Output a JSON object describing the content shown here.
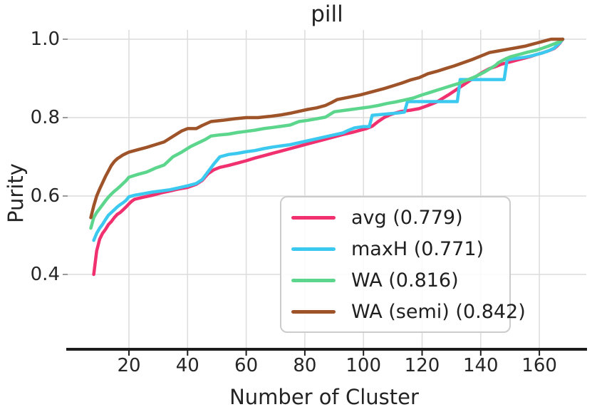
{
  "figure": {
    "title": "pill",
    "xlabel": "Number of Cluster",
    "ylabel": "Purity"
  },
  "chart_data": {
    "type": "line",
    "title": "pill",
    "xlabel": "Number of Cluster",
    "ylabel": "Purity",
    "x_ticks": [
      20,
      40,
      60,
      80,
      100,
      120,
      140,
      160
    ],
    "y_ticks": [
      0.4,
      0.6,
      0.8,
      1.0
    ],
    "xlim": [
      0,
      176
    ],
    "ylim": [
      0.21,
      1.02
    ],
    "grid": true,
    "grid_color": "#dcdcdc",
    "spine_color": "#1c1c1c",
    "legend_position": "lower right",
    "series": [
      {
        "name": "avg",
        "score": 0.779,
        "label": "avg (0.779)",
        "color": "#f0306f",
        "points": [
          [
            8,
            0.4
          ],
          [
            9,
            0.46
          ],
          [
            10,
            0.49
          ],
          [
            11,
            0.505
          ],
          [
            12,
            0.515
          ],
          [
            13,
            0.527
          ],
          [
            14,
            0.535
          ],
          [
            15,
            0.545
          ],
          [
            16,
            0.553
          ],
          [
            17,
            0.558
          ],
          [
            18,
            0.565
          ],
          [
            19,
            0.572
          ],
          [
            20,
            0.58
          ],
          [
            21,
            0.587
          ],
          [
            22,
            0.592
          ],
          [
            25,
            0.597
          ],
          [
            28,
            0.602
          ],
          [
            31,
            0.608
          ],
          [
            34,
            0.613
          ],
          [
            37,
            0.618
          ],
          [
            40,
            0.622
          ],
          [
            43,
            0.63
          ],
          [
            45,
            0.64
          ],
          [
            47,
            0.657
          ],
          [
            49,
            0.667
          ],
          [
            51,
            0.673
          ],
          [
            54,
            0.678
          ],
          [
            57,
            0.684
          ],
          [
            60,
            0.69
          ],
          [
            63,
            0.697
          ],
          [
            66,
            0.703
          ],
          [
            69,
            0.709
          ],
          [
            72,
            0.715
          ],
          [
            75,
            0.721
          ],
          [
            78,
            0.727
          ],
          [
            81,
            0.733
          ],
          [
            84,
            0.739
          ],
          [
            87,
            0.745
          ],
          [
            90,
            0.751
          ],
          [
            93,
            0.757
          ],
          [
            96,
            0.762
          ],
          [
            99,
            0.768
          ],
          [
            101,
            0.772
          ],
          [
            103,
            0.778
          ],
          [
            105,
            0.79
          ],
          [
            107,
            0.8
          ],
          [
            109,
            0.807
          ],
          [
            111,
            0.812
          ],
          [
            113,
            0.816
          ],
          [
            116,
            0.819
          ],
          [
            119,
            0.823
          ],
          [
            122,
            0.831
          ],
          [
            125,
            0.84
          ],
          [
            127,
            0.849
          ],
          [
            129,
            0.858
          ],
          [
            131,
            0.868
          ],
          [
            133,
            0.878
          ],
          [
            135,
            0.888
          ],
          [
            137,
            0.898
          ],
          [
            139,
            0.908
          ],
          [
            141,
            0.917
          ],
          [
            143,
            0.925
          ],
          [
            145,
            0.93
          ],
          [
            147,
            0.936
          ],
          [
            149,
            0.94
          ],
          [
            151,
            0.944
          ],
          [
            153,
            0.948
          ],
          [
            155,
            0.952
          ],
          [
            157,
            0.956
          ],
          [
            159,
            0.961
          ],
          [
            161,
            0.965
          ],
          [
            163,
            0.97
          ],
          [
            165,
            0.976
          ],
          [
            166,
            0.982
          ],
          [
            167,
            0.99
          ],
          [
            168,
            1.0
          ]
        ]
      },
      {
        "name": "maxH",
        "score": 0.771,
        "label": "maxH (0.771)",
        "color": "#3cc9f0",
        "points": [
          [
            8,
            0.487
          ],
          [
            9,
            0.505
          ],
          [
            10,
            0.518
          ],
          [
            11,
            0.528
          ],
          [
            12,
            0.54
          ],
          [
            13,
            0.551
          ],
          [
            14,
            0.558
          ],
          [
            15,
            0.565
          ],
          [
            16,
            0.572
          ],
          [
            17,
            0.578
          ],
          [
            18,
            0.583
          ],
          [
            19,
            0.589
          ],
          [
            20,
            0.598
          ],
          [
            22,
            0.602
          ],
          [
            25,
            0.606
          ],
          [
            28,
            0.61
          ],
          [
            31,
            0.613
          ],
          [
            34,
            0.616
          ],
          [
            37,
            0.621
          ],
          [
            40,
            0.626
          ],
          [
            43,
            0.632
          ],
          [
            45,
            0.642
          ],
          [
            47,
            0.662
          ],
          [
            49,
            0.682
          ],
          [
            51,
            0.7
          ],
          [
            54,
            0.706
          ],
          [
            57,
            0.709
          ],
          [
            60,
            0.713
          ],
          [
            63,
            0.716
          ],
          [
            66,
            0.721
          ],
          [
            69,
            0.725
          ],
          [
            72,
            0.728
          ],
          [
            75,
            0.731
          ],
          [
            78,
            0.736
          ],
          [
            81,
            0.741
          ],
          [
            84,
            0.746
          ],
          [
            87,
            0.751
          ],
          [
            90,
            0.756
          ],
          [
            93,
            0.761
          ],
          [
            95,
            0.768
          ],
          [
            97,
            0.774
          ],
          [
            100,
            0.777
          ],
          [
            102,
            0.777
          ],
          [
            103,
            0.806
          ],
          [
            106,
            0.808
          ],
          [
            109,
            0.81
          ],
          [
            112,
            0.812
          ],
          [
            114,
            0.814
          ],
          [
            115,
            0.841
          ],
          [
            120,
            0.841
          ],
          [
            125,
            0.841
          ],
          [
            130,
            0.841
          ],
          [
            132,
            0.841
          ],
          [
            133,
            0.897
          ],
          [
            137,
            0.897
          ],
          [
            141,
            0.897
          ],
          [
            145,
            0.897
          ],
          [
            148,
            0.897
          ],
          [
            149,
            0.947
          ],
          [
            151,
            0.95
          ],
          [
            153,
            0.952
          ],
          [
            155,
            0.954
          ],
          [
            157,
            0.957
          ],
          [
            159,
            0.961
          ],
          [
            161,
            0.965
          ],
          [
            163,
            0.97
          ],
          [
            165,
            0.977
          ],
          [
            166,
            0.984
          ],
          [
            167,
            0.991
          ],
          [
            168,
            1.0
          ]
        ]
      },
      {
        "name": "WA",
        "score": 0.816,
        "label": "WA (0.816)",
        "color": "#5dd68d",
        "points": [
          [
            7,
            0.518
          ],
          [
            8,
            0.545
          ],
          [
            9,
            0.558
          ],
          [
            10,
            0.568
          ],
          [
            11,
            0.578
          ],
          [
            12,
            0.588
          ],
          [
            13,
            0.597
          ],
          [
            14,
            0.605
          ],
          [
            15,
            0.612
          ],
          [
            16,
            0.618
          ],
          [
            17,
            0.625
          ],
          [
            18,
            0.632
          ],
          [
            19,
            0.639
          ],
          [
            20,
            0.648
          ],
          [
            23,
            0.655
          ],
          [
            26,
            0.661
          ],
          [
            29,
            0.671
          ],
          [
            32,
            0.679
          ],
          [
            35,
            0.7
          ],
          [
            38,
            0.712
          ],
          [
            41,
            0.726
          ],
          [
            44,
            0.737
          ],
          [
            46,
            0.744
          ],
          [
            48,
            0.753
          ],
          [
            51,
            0.756
          ],
          [
            54,
            0.758
          ],
          [
            57,
            0.762
          ],
          [
            60,
            0.765
          ],
          [
            63,
            0.768
          ],
          [
            66,
            0.772
          ],
          [
            69,
            0.775
          ],
          [
            72,
            0.778
          ],
          [
            75,
            0.781
          ],
          [
            78,
            0.79
          ],
          [
            81,
            0.793
          ],
          [
            84,
            0.797
          ],
          [
            87,
            0.801
          ],
          [
            90,
            0.815
          ],
          [
            93,
            0.818
          ],
          [
            96,
            0.821
          ],
          [
            99,
            0.824
          ],
          [
            102,
            0.827
          ],
          [
            105,
            0.831
          ],
          [
            108,
            0.836
          ],
          [
            111,
            0.84
          ],
          [
            114,
            0.845
          ],
          [
            117,
            0.85
          ],
          [
            120,
            0.858
          ],
          [
            123,
            0.865
          ],
          [
            126,
            0.872
          ],
          [
            129,
            0.879
          ],
          [
            132,
            0.886
          ],
          [
            135,
            0.895
          ],
          [
            138,
            0.904
          ],
          [
            141,
            0.915
          ],
          [
            143,
            0.924
          ],
          [
            145,
            0.933
          ],
          [
            146,
            0.94
          ],
          [
            148,
            0.948
          ],
          [
            150,
            0.955
          ],
          [
            153,
            0.961
          ],
          [
            156,
            0.967
          ],
          [
            159,
            0.972
          ],
          [
            161,
            0.977
          ],
          [
            163,
            0.982
          ],
          [
            165,
            0.988
          ],
          [
            167,
            0.994
          ],
          [
            168,
            1.0
          ]
        ]
      },
      {
        "name": "WA (semi)",
        "score": 0.842,
        "label": "WA (semi) (0.842)",
        "color": "#9e5329",
        "points": [
          [
            7,
            0.545
          ],
          [
            8,
            0.575
          ],
          [
            9,
            0.6
          ],
          [
            10,
            0.618
          ],
          [
            11,
            0.634
          ],
          [
            12,
            0.65
          ],
          [
            13,
            0.664
          ],
          [
            14,
            0.678
          ],
          [
            15,
            0.688
          ],
          [
            16,
            0.695
          ],
          [
            17,
            0.7
          ],
          [
            18,
            0.705
          ],
          [
            20,
            0.712
          ],
          [
            23,
            0.718
          ],
          [
            26,
            0.724
          ],
          [
            29,
            0.731
          ],
          [
            32,
            0.738
          ],
          [
            35,
            0.752
          ],
          [
            38,
            0.766
          ],
          [
            40,
            0.772
          ],
          [
            43,
            0.772
          ],
          [
            45,
            0.78
          ],
          [
            48,
            0.79
          ],
          [
            52,
            0.793
          ],
          [
            56,
            0.797
          ],
          [
            60,
            0.8
          ],
          [
            64,
            0.8
          ],
          [
            68,
            0.803
          ],
          [
            72,
            0.807
          ],
          [
            75,
            0.811
          ],
          [
            78,
            0.816
          ],
          [
            81,
            0.821
          ],
          [
            84,
            0.825
          ],
          [
            87,
            0.831
          ],
          [
            89,
            0.838
          ],
          [
            91,
            0.846
          ],
          [
            95,
            0.852
          ],
          [
            99,
            0.858
          ],
          [
            103,
            0.866
          ],
          [
            107,
            0.874
          ],
          [
            110,
            0.881
          ],
          [
            113,
            0.888
          ],
          [
            116,
            0.896
          ],
          [
            119,
            0.902
          ],
          [
            122,
            0.912
          ],
          [
            125,
            0.918
          ],
          [
            128,
            0.925
          ],
          [
            131,
            0.932
          ],
          [
            134,
            0.94
          ],
          [
            137,
            0.948
          ],
          [
            140,
            0.957
          ],
          [
            143,
            0.966
          ],
          [
            146,
            0.97
          ],
          [
            149,
            0.974
          ],
          [
            152,
            0.978
          ],
          [
            155,
            0.982
          ],
          [
            157,
            0.986
          ],
          [
            159,
            0.99
          ],
          [
            161,
            0.994
          ],
          [
            163,
            0.998
          ],
          [
            164,
            1.0
          ],
          [
            168,
            1.0
          ]
        ]
      }
    ]
  }
}
